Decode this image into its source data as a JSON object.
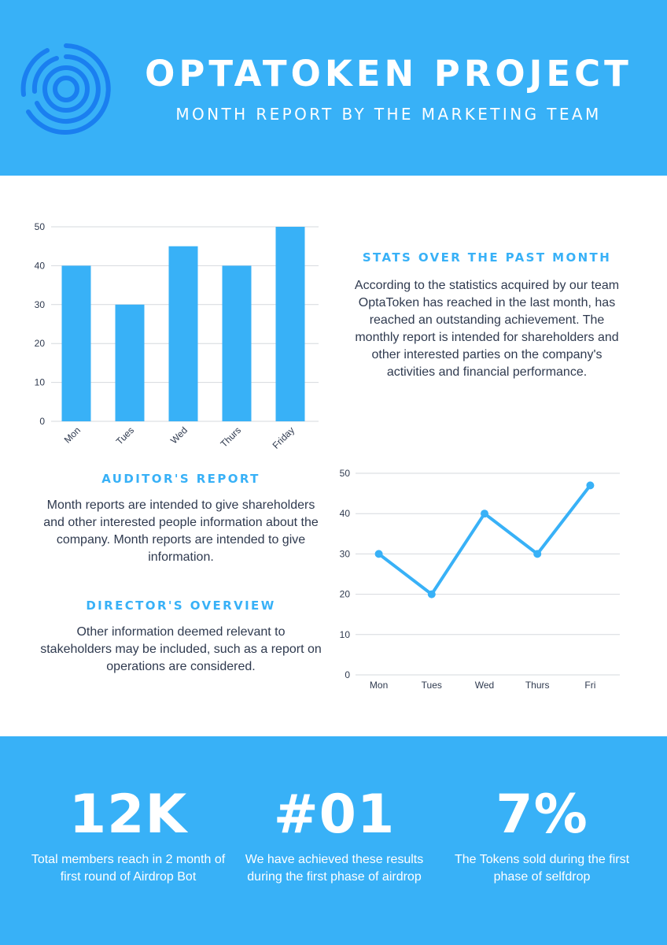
{
  "colors": {
    "accent": "#38b1f7",
    "text": "#2f3a4f",
    "background": "#ffffff",
    "logo": "#1a7ff0"
  },
  "header": {
    "logo_icon": "concentric-rings-logo-icon",
    "title": "OPTATOKEN PROJECT",
    "subtitle": "MONTH REPORT BY THE MARKETING TEAM"
  },
  "stats_section": {
    "heading": "STATS OVER THE PAST MONTH",
    "body": "According to the statistics acquired by our team OptaToken has reached in the last month, has reached an outstanding achievement. The monthly report is intended for shareholders and other interested parties on the company's activities and financial performance."
  },
  "auditor_section": {
    "heading": "AUDITOR'S REPORT",
    "body": "Month reports are intended to give shareholders and other interested people information about the company. Month reports are intended to give information."
  },
  "director_section": {
    "heading": "DIRECTOR'S OVERVIEW",
    "body": "Other information deemed relevant to stakeholders may be included, such as a report on operations are considered."
  },
  "chart_data": [
    {
      "type": "bar",
      "categories": [
        "Mon",
        "Tues",
        "Wed",
        "Thurs",
        "Friday"
      ],
      "values": [
        40,
        30,
        45,
        40,
        50
      ],
      "yticks": [
        0,
        10,
        20,
        30,
        40,
        50
      ],
      "ylim": [
        0,
        50
      ],
      "grid": true,
      "bar_color": "#38b1f7",
      "x_tick_rotation": "rotated"
    },
    {
      "type": "line",
      "categories": [
        "Mon",
        "Tues",
        "Wed",
        "Thurs",
        "Fri"
      ],
      "values": [
        30,
        20,
        40,
        30,
        47
      ],
      "yticks": [
        0,
        10,
        20,
        30,
        40,
        50
      ],
      "ylim": [
        0,
        50
      ],
      "grid": true,
      "line_color": "#38b1f7"
    }
  ],
  "footer": {
    "stats": [
      {
        "number": "12K",
        "text": "Total members reach in 2 month of first round of Airdrop Bot"
      },
      {
        "number": "#01",
        "text": "We have achieved these results during the first phase of airdrop"
      },
      {
        "number": "7%",
        "text": "The Tokens sold during the first phase of selfdrop"
      }
    ]
  }
}
